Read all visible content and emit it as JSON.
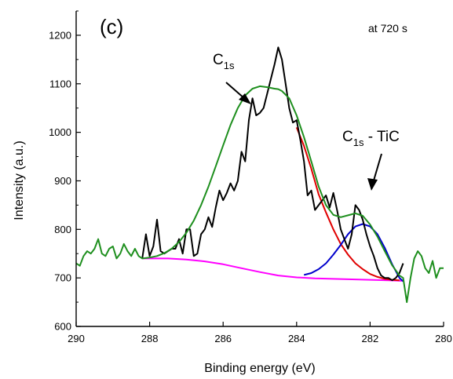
{
  "chart_data": {
    "type": "line",
    "panel_label": "(c)",
    "note": "at 720 s",
    "xlabel": "Binding energy (eV)",
    "ylabel": "Intensity (a.u.)",
    "xlim": [
      290,
      280
    ],
    "ylim": [
      600,
      1250
    ],
    "x_reversed": true,
    "x_ticks": [
      290,
      288,
      286,
      284,
      282,
      280
    ],
    "y_ticks": [
      600,
      700,
      800,
      900,
      1000,
      1100,
      1200
    ],
    "grid": false,
    "legend": "none",
    "annotations": [
      {
        "main": "C",
        "sub": "1s",
        "suffix": ""
      },
      {
        "main": "C",
        "sub": "1s",
        "suffix": " - TiC"
      }
    ],
    "series": [
      {
        "role": "raw",
        "color": "#000000",
        "x": [
          288.2,
          288.1,
          288.0,
          287.9,
          287.8,
          287.7,
          287.6,
          287.5,
          287.4,
          287.3,
          287.2,
          287.1,
          287.0,
          286.9,
          286.8,
          286.7,
          286.6,
          286.5,
          286.4,
          286.3,
          286.2,
          286.1,
          286.0,
          285.9,
          285.8,
          285.7,
          285.6,
          285.5,
          285.4,
          285.3,
          285.2,
          285.1,
          285.0,
          284.9,
          284.8,
          284.7,
          284.6,
          284.5,
          284.4,
          284.3,
          284.2,
          284.1,
          284.0,
          283.9,
          283.8,
          283.7,
          283.6,
          283.5,
          283.4,
          283.3,
          283.2,
          283.1,
          283.0,
          282.9,
          282.8,
          282.7,
          282.6,
          282.5,
          282.4,
          282.3,
          282.2,
          282.1,
          282.0,
          281.9,
          281.8,
          281.7,
          281.6,
          281.5,
          281.4,
          281.3,
          281.2,
          281.1
        ],
        "y": [
          740,
          790,
          745,
          765,
          820,
          755,
          750,
          755,
          760,
          760,
          780,
          750,
          800,
          800,
          745,
          750,
          790,
          800,
          825,
          805,
          845,
          880,
          860,
          875,
          895,
          880,
          900,
          960,
          940,
          1025,
          1070,
          1035,
          1040,
          1050,
          1080,
          1110,
          1140,
          1175,
          1150,
          1100,
          1050,
          1020,
          1025,
          985,
          940,
          870,
          880,
          840,
          850,
          860,
          870,
          845,
          875,
          840,
          800,
          780,
          760,
          790,
          850,
          840,
          820,
          790,
          765,
          745,
          720,
          705,
          700,
          700,
          695,
          700,
          710,
          730
        ]
      },
      {
        "role": "background",
        "color": "#ff00ff",
        "x": [
          288.2,
          288.0,
          287.5,
          287.0,
          286.5,
          286.0,
          285.5,
          285.0,
          284.5,
          284.0,
          283.5,
          283.0,
          282.5,
          282.0,
          281.5,
          281.1
        ],
        "y": [
          740,
          740,
          740,
          738,
          734,
          728,
          720,
          712,
          705,
          701,
          699,
          698,
          697,
          696,
          695,
          694
        ]
      },
      {
        "role": "fit-peak-C1s",
        "color": "#e00000",
        "x": [
          284.0,
          283.8,
          283.6,
          283.4,
          283.2,
          283.0,
          282.8,
          282.6,
          282.4,
          282.2,
          282.0,
          281.8,
          281.6,
          281.4,
          281.2
        ],
        "y": [
          1010,
          972,
          925,
          872,
          835,
          800,
          770,
          748,
          730,
          718,
          708,
          702,
          698,
          696,
          695
        ]
      },
      {
        "role": "fit-peak-TiC",
        "color": "#0000cc",
        "x": [
          283.8,
          283.6,
          283.4,
          283.2,
          283.0,
          282.8,
          282.6,
          282.4,
          282.2,
          282.0,
          281.8,
          281.6,
          281.4,
          281.2,
          281.1
        ],
        "y": [
          706,
          710,
          718,
          730,
          748,
          768,
          790,
          806,
          811,
          806,
          790,
          762,
          728,
          700,
          693
        ]
      },
      {
        "role": "envelope",
        "color": "#1e8f1e",
        "x": [
          290.0,
          289.9,
          289.8,
          289.7,
          289.6,
          289.5,
          289.4,
          289.3,
          289.2,
          289.1,
          289.0,
          288.9,
          288.8,
          288.7,
          288.6,
          288.5,
          288.4,
          288.3,
          288.2,
          288.0,
          287.8,
          287.6,
          287.4,
          287.2,
          287.0,
          286.8,
          286.6,
          286.4,
          286.2,
          286.0,
          285.8,
          285.6,
          285.4,
          285.2,
          285.0,
          284.8,
          284.6,
          284.5,
          284.4,
          284.2,
          284.0,
          283.8,
          283.6,
          283.4,
          283.2,
          283.0,
          282.8,
          282.6,
          282.4,
          282.2,
          282.0,
          281.8,
          281.6,
          281.4,
          281.2,
          281.1,
          281.0,
          280.9,
          280.8,
          280.7,
          280.6,
          280.5,
          280.4,
          280.3,
          280.2,
          280.1,
          280.0
        ],
        "y": [
          730,
          725,
          745,
          755,
          750,
          760,
          780,
          750,
          745,
          760,
          765,
          740,
          750,
          770,
          755,
          745,
          760,
          745,
          740,
          742,
          745,
          751,
          760,
          774,
          793,
          818,
          850,
          888,
          930,
          973,
          1015,
          1050,
          1076,
          1090,
          1095,
          1093,
          1090,
          1089,
          1085,
          1070,
          1035,
          990,
          940,
          888,
          850,
          830,
          825,
          829,
          833,
          828,
          810,
          785,
          755,
          726,
          705,
          700,
          650,
          700,
          740,
          755,
          745,
          720,
          710,
          735,
          700,
          720,
          720
        ]
      }
    ]
  }
}
